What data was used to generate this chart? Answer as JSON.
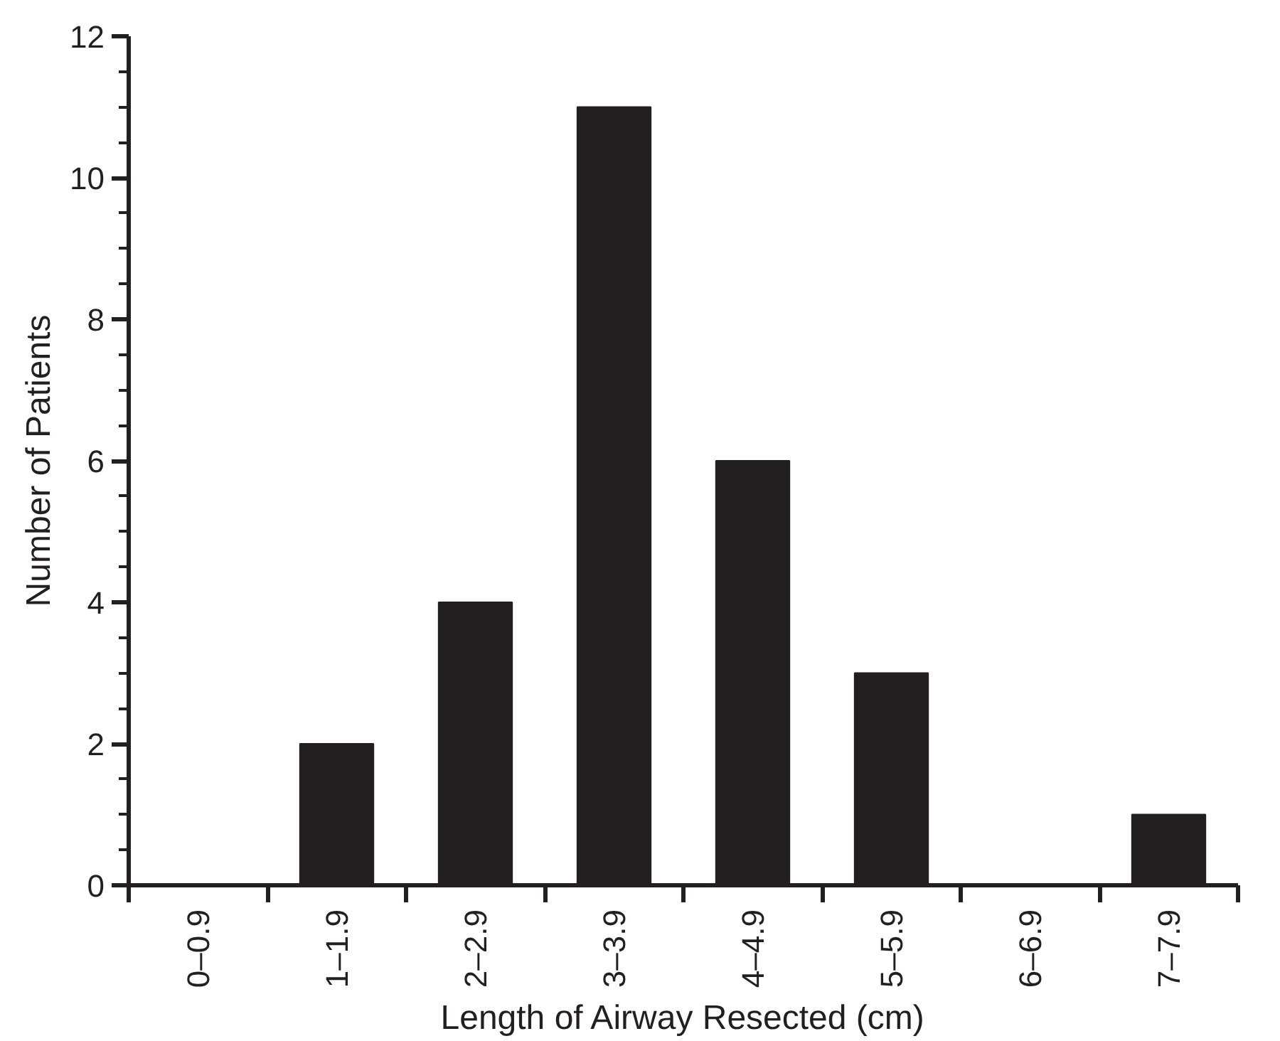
{
  "chart_data": {
    "type": "bar",
    "xlabel": "Length of Airway Resected (cm)",
    "ylabel": "Number of Patients",
    "categories": [
      "0–0.9",
      "1–1.9",
      "2–2.9",
      "3–3.9",
      "4–4.9",
      "5–5.9",
      "6–6.9",
      "7–7.9"
    ],
    "values": [
      0,
      2,
      4,
      11,
      6,
      3,
      0,
      1
    ],
    "color": "#231f20",
    "ylim": [
      0,
      12
    ],
    "yticks": [
      0,
      2,
      4,
      6,
      8,
      10,
      12
    ],
    "grid": false
  }
}
